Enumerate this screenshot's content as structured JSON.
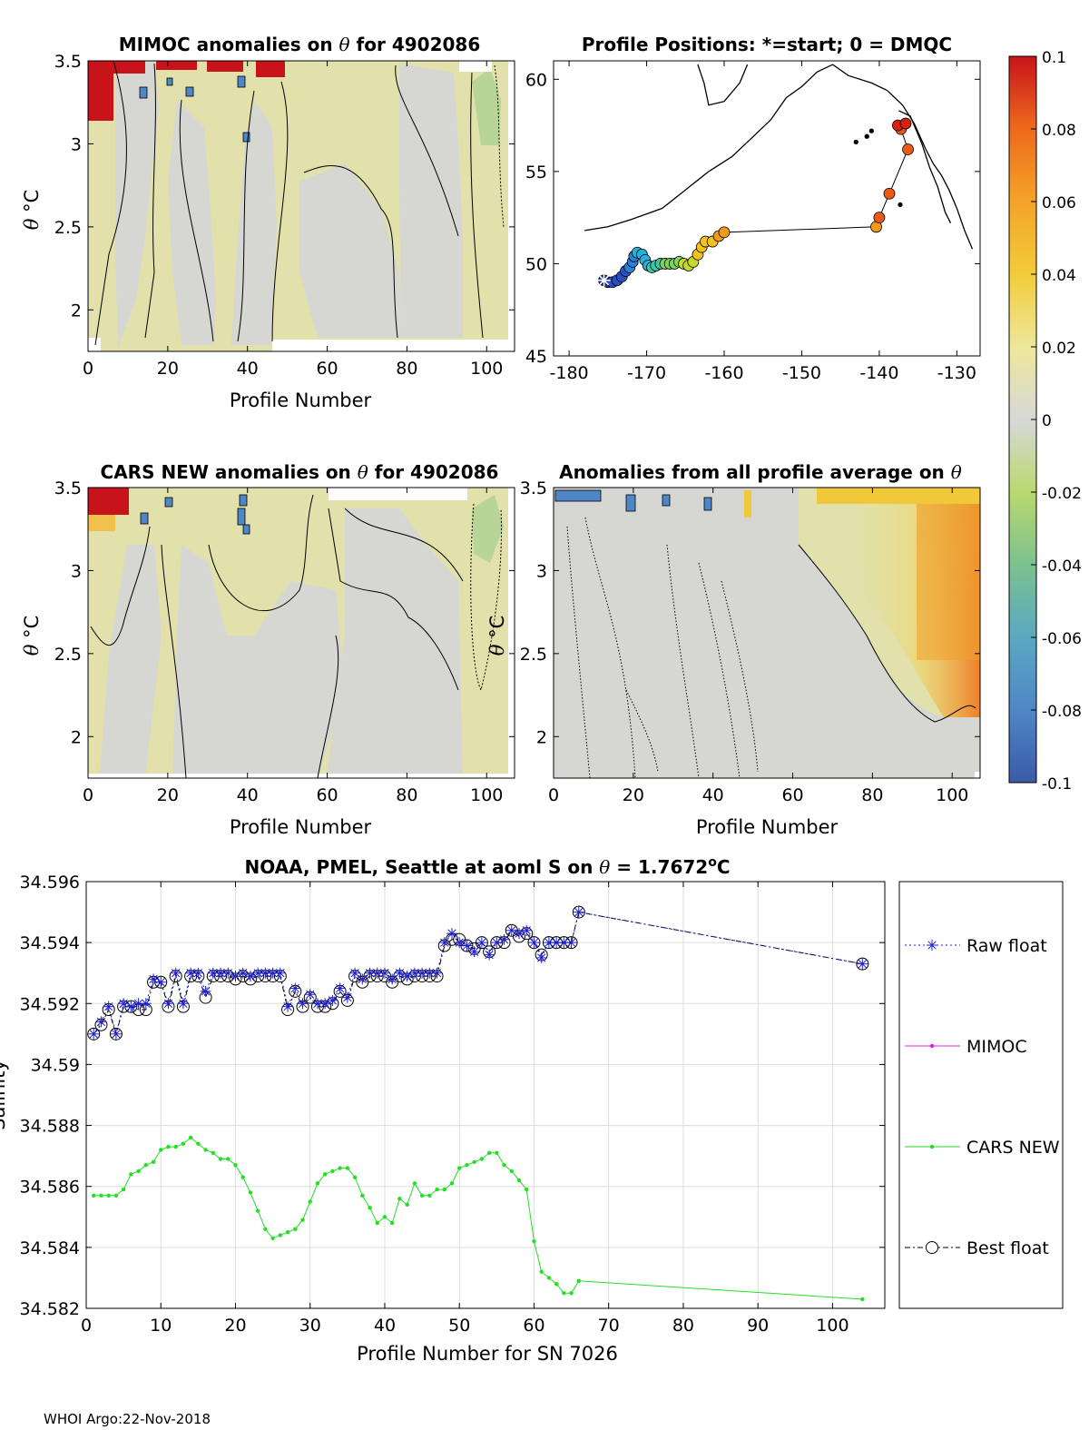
{
  "footer": "WHOI Argo:22-Nov-2018",
  "colorbar": {
    "ticks": [
      "0.1",
      "0.08",
      "0.06",
      "0.04",
      "0.02",
      "0",
      "-0.02",
      "-0.04",
      "-0.06",
      "-0.08",
      "-0.1"
    ],
    "colors": [
      "#3a5ba8",
      "#4f86c6",
      "#5aa9c2",
      "#7cc18e",
      "#b9d96e",
      "#d8d8d8",
      "#eee79a",
      "#f2cc3a",
      "#f4a328",
      "#ee6a1c",
      "#c8131b"
    ]
  },
  "chart_data": [
    {
      "type": "heatmap",
      "title_pre": "MIMOC anomalies on ",
      "title_theta": "θ",
      "title_post": "  for 4902086",
      "xlabel": "Profile Number",
      "ylabel_theta": "θ",
      "ylabel_unit": " °C",
      "xlim": [
        0,
        107
      ],
      "ylim": [
        1.75,
        3.5
      ],
      "xticks": [
        0,
        20,
        40,
        60,
        80,
        100
      ],
      "yticks": [
        2,
        2.5,
        3,
        3.5
      ],
      "ytick_labels": [
        "2",
        "2.5",
        "3",
        "3.5"
      ]
    },
    {
      "type": "scatter",
      "title": "Profile Positions: *=start; 0 = DMQC",
      "xlim": [
        -182,
        -127
      ],
      "ylim": [
        45,
        61
      ],
      "xticks": [
        -180,
        -170,
        -160,
        -150,
        -140,
        -130
      ],
      "yticks": [
        45,
        50,
        55,
        60
      ],
      "track": [
        [
          -175.5,
          49.1
        ],
        [
          -175.0,
          49.0
        ],
        [
          -174.4,
          49.0
        ],
        [
          -173.8,
          49.1
        ],
        [
          -173.2,
          49.3
        ],
        [
          -172.7,
          49.6
        ],
        [
          -172.2,
          49.8
        ],
        [
          -171.8,
          50.1
        ],
        [
          -171.6,
          50.4
        ],
        [
          -171.2,
          50.6
        ],
        [
          -170.6,
          50.5
        ],
        [
          -170.2,
          50.2
        ],
        [
          -169.8,
          49.9
        ],
        [
          -169.3,
          49.8
        ],
        [
          -168.8,
          49.9
        ],
        [
          -168.2,
          50.0
        ],
        [
          -167.6,
          50.0
        ],
        [
          -167.0,
          50.0
        ],
        [
          -166.4,
          50.0
        ],
        [
          -165.8,
          50.1
        ],
        [
          -165.2,
          50.0
        ],
        [
          -164.6,
          49.9
        ],
        [
          -164.0,
          50.1
        ],
        [
          -163.4,
          50.5
        ],
        [
          -162.9,
          50.9
        ],
        [
          -162.4,
          51.2
        ],
        [
          -161.5,
          51.2
        ],
        [
          -160.7,
          51.5
        ],
        [
          -160.0,
          51.7
        ],
        [
          -140.4,
          52.0
        ],
        [
          -140.0,
          52.5
        ],
        [
          -138.7,
          53.8
        ],
        [
          -136.3,
          56.2
        ],
        [
          -137.2,
          57.3
        ],
        [
          -137.6,
          57.5
        ],
        [
          -136.6,
          57.6
        ]
      ],
      "coast": [
        [
          [
            -178,
            51.8
          ],
          [
            -175,
            52.0
          ],
          [
            -172,
            52.4
          ],
          [
            -168,
            53.0
          ],
          [
            -165,
            54.0
          ],
          [
            -162,
            55.0
          ],
          [
            -159,
            55.8
          ],
          [
            -156,
            57.0
          ],
          [
            -154,
            57.8
          ],
          [
            -152,
            59.0
          ],
          [
            -150,
            59.6
          ],
          [
            -148,
            60.4
          ],
          [
            -146,
            60.8
          ],
          [
            -144,
            60.2
          ],
          [
            -141,
            59.8
          ],
          [
            -139,
            59.4
          ],
          [
            -137,
            58.6
          ],
          [
            -135.5,
            57.6
          ],
          [
            -134,
            56.2
          ],
          [
            -133,
            55.4
          ],
          [
            -132,
            54.8
          ],
          [
            -131,
            54.0
          ],
          [
            -130,
            53.0
          ],
          [
            -129,
            51.8
          ],
          [
            -128,
            50.8
          ]
        ],
        [
          [
            -157,
            60.8
          ],
          [
            -158,
            59.8
          ],
          [
            -160,
            58.8
          ],
          [
            -162,
            58.6
          ],
          [
            -162.6,
            59.8
          ],
          [
            -163.4,
            60.8
          ]
        ],
        [
          [
            -137.5,
            58.3
          ],
          [
            -136,
            58.0
          ],
          [
            -134.5,
            56.5
          ],
          [
            -133.5,
            55.2
          ],
          [
            -132.5,
            54.2
          ],
          [
            -131.5,
            52.8
          ],
          [
            -130.8,
            52.2
          ]
        ]
      ],
      "islands": [
        [
          -143,
          56.6
        ],
        [
          -141.6,
          56.9
        ],
        [
          -141.0,
          57.2
        ],
        [
          -137.3,
          53.2
        ]
      ]
    },
    {
      "type": "heatmap",
      "title_pre": "CARS NEW anomalies on ",
      "title_theta": "θ",
      "title_post": " for 4902086",
      "xlabel": "Profile Number",
      "ylabel_theta": "θ",
      "ylabel_unit": " °C",
      "xlim": [
        0,
        107
      ],
      "ylim": [
        1.75,
        3.5
      ],
      "xticks": [
        0,
        20,
        40,
        60,
        80,
        100
      ],
      "yticks": [
        2,
        2.5,
        3,
        3.5
      ],
      "ytick_labels": [
        "2",
        "2.5",
        "3",
        "3.5"
      ]
    },
    {
      "type": "heatmap",
      "title_pre": "Anomalies from all profile average on ",
      "title_theta": "θ",
      "title_post": "",
      "xlabel": "Profile Number",
      "ylabel_theta": "θ",
      "ylabel_unit": " °C",
      "xlim": [
        0,
        107
      ],
      "ylim": [
        1.75,
        3.5
      ],
      "xticks": [
        0,
        20,
        40,
        60,
        80,
        100
      ],
      "yticks": [
        2,
        2.5,
        3,
        3.5
      ],
      "ytick_labels": [
        "2",
        "2.5",
        "3",
        "3.5"
      ]
    },
    {
      "type": "line",
      "title_pre": "NOAA, PMEL, Seattle at aoml S on ",
      "title_theta": "θ",
      "title_mid": " = 1.7672",
      "title_sup": "o",
      "title_post": "C",
      "xlabel": "Profile Number for SN 7026",
      "ylabel": "Salinity",
      "xlim": [
        0,
        107
      ],
      "ylim": [
        34.582,
        34.596
      ],
      "xticks": [
        0,
        10,
        20,
        30,
        40,
        50,
        60,
        70,
        80,
        90,
        100
      ],
      "yticks": [
        34.582,
        34.584,
        34.586,
        34.588,
        34.59,
        34.592,
        34.594,
        34.596
      ],
      "ytick_labels": [
        "34.582",
        "34.584",
        "34.586",
        "34.588",
        "34.59",
        "34.592",
        "34.594",
        "34.596"
      ],
      "grid": true,
      "legend": [
        "Raw float",
        "MIMOC",
        "CARS NEW",
        "Best float"
      ],
      "series": [
        {
          "name": "Raw float",
          "x": [
            1,
            2,
            3,
            4,
            5,
            6,
            7,
            8,
            9,
            10,
            11,
            12,
            13,
            14,
            15,
            16,
            17,
            18,
            19,
            20,
            21,
            22,
            23,
            24,
            25,
            26,
            27,
            28,
            29,
            30,
            31,
            32,
            33,
            34,
            35,
            36,
            37,
            38,
            39,
            40,
            41,
            42,
            43,
            44,
            45,
            46,
            47,
            48,
            49,
            50,
            51,
            52,
            53,
            54,
            55,
            56,
            57,
            58,
            59,
            60,
            61,
            62,
            63,
            64,
            65,
            66,
            104
          ],
          "values": [
            34.591,
            34.5914,
            34.5919,
            34.591,
            34.592,
            34.5919,
            34.592,
            34.592,
            34.5928,
            34.5927,
            34.592,
            34.593,
            34.592,
            34.593,
            34.593,
            34.5924,
            34.593,
            34.593,
            34.593,
            34.5929,
            34.593,
            34.5929,
            34.593,
            34.593,
            34.593,
            34.593,
            34.5919,
            34.5925,
            34.592,
            34.5923,
            34.592,
            34.592,
            34.5921,
            34.5925,
            34.5922,
            34.593,
            34.5928,
            34.593,
            34.593,
            34.593,
            34.5928,
            34.593,
            34.5929,
            34.593,
            34.593,
            34.593,
            34.593,
            34.594,
            34.5943,
            34.594,
            34.5939,
            34.5937,
            34.594,
            34.5936,
            34.594,
            34.5941,
            34.5944,
            34.5943,
            34.5944,
            34.594,
            34.5935,
            34.594,
            34.594,
            34.594,
            34.594,
            34.595,
            34.5933
          ]
        },
        {
          "name": "MIMOC",
          "x": [],
          "values": []
        },
        {
          "name": "CARS NEW",
          "x": [
            1,
            2,
            3,
            4,
            5,
            6,
            7,
            8,
            9,
            10,
            11,
            12,
            13,
            14,
            15,
            16,
            17,
            18,
            19,
            20,
            21,
            22,
            23,
            24,
            25,
            26,
            27,
            28,
            29,
            30,
            31,
            32,
            33,
            34,
            35,
            36,
            37,
            38,
            39,
            40,
            41,
            42,
            43,
            44,
            45,
            46,
            47,
            48,
            49,
            50,
            51,
            52,
            53,
            54,
            55,
            56,
            57,
            58,
            59,
            60,
            61,
            62,
            63,
            64,
            65,
            66,
            104
          ],
          "values": [
            34.5857,
            34.5857,
            34.5857,
            34.5857,
            34.5859,
            34.5864,
            34.5865,
            34.5867,
            34.5868,
            34.5872,
            34.5873,
            34.5873,
            34.5874,
            34.5876,
            34.5874,
            34.5872,
            34.5871,
            34.5869,
            34.5869,
            34.5867,
            34.5863,
            34.5858,
            34.5852,
            34.5846,
            34.5843,
            34.5844,
            34.5845,
            34.5846,
            34.5849,
            34.5855,
            34.5861,
            34.5864,
            34.5865,
            34.5866,
            34.5866,
            34.5863,
            34.5857,
            34.5853,
            34.5848,
            34.585,
            34.5848,
            34.5856,
            34.5854,
            34.5861,
            34.5857,
            34.5857,
            34.5859,
            34.5859,
            34.5861,
            34.5866,
            34.5867,
            34.5868,
            34.5869,
            34.5871,
            34.5871,
            34.5867,
            34.5865,
            34.5862,
            34.5859,
            34.5842,
            34.5832,
            34.583,
            34.5828,
            34.5825,
            34.5825,
            34.5829,
            34.5823
          ]
        },
        {
          "name": "Best float",
          "x": [
            1,
            2,
            3,
            4,
            5,
            6,
            7,
            8,
            9,
            10,
            11,
            12,
            13,
            14,
            15,
            16,
            17,
            18,
            19,
            20,
            21,
            22,
            23,
            24,
            25,
            26,
            27,
            28,
            29,
            30,
            31,
            32,
            33,
            34,
            35,
            36,
            37,
            38,
            39,
            40,
            41,
            42,
            43,
            44,
            45,
            46,
            47,
            48,
            49,
            50,
            51,
            52,
            53,
            54,
            55,
            56,
            57,
            58,
            59,
            60,
            61,
            62,
            63,
            64,
            65,
            66,
            104
          ],
          "values": [
            34.591,
            34.5913,
            34.5918,
            34.591,
            34.5919,
            34.5919,
            34.5918,
            34.5918,
            34.5927,
            34.5927,
            34.5919,
            34.5929,
            34.5919,
            34.5929,
            34.5929,
            34.5922,
            34.5929,
            34.5929,
            34.5929,
            34.5928,
            34.5929,
            34.5928,
            34.5929,
            34.5929,
            34.5929,
            34.5929,
            34.5918,
            34.5924,
            34.5919,
            34.5922,
            34.5919,
            34.5919,
            34.592,
            34.5924,
            34.5921,
            34.5929,
            34.5927,
            34.5929,
            34.5929,
            34.5929,
            34.5927,
            34.5929,
            34.5928,
            34.5929,
            34.5929,
            34.5929,
            34.5929,
            34.5939,
            34.5941,
            34.5941,
            34.5939,
            34.5938,
            34.594,
            34.5937,
            34.594,
            34.594,
            34.5944,
            34.5942,
            34.5943,
            34.594,
            34.5936,
            34.594,
            34.594,
            34.594,
            34.594,
            34.595,
            34.5933
          ]
        }
      ]
    }
  ]
}
